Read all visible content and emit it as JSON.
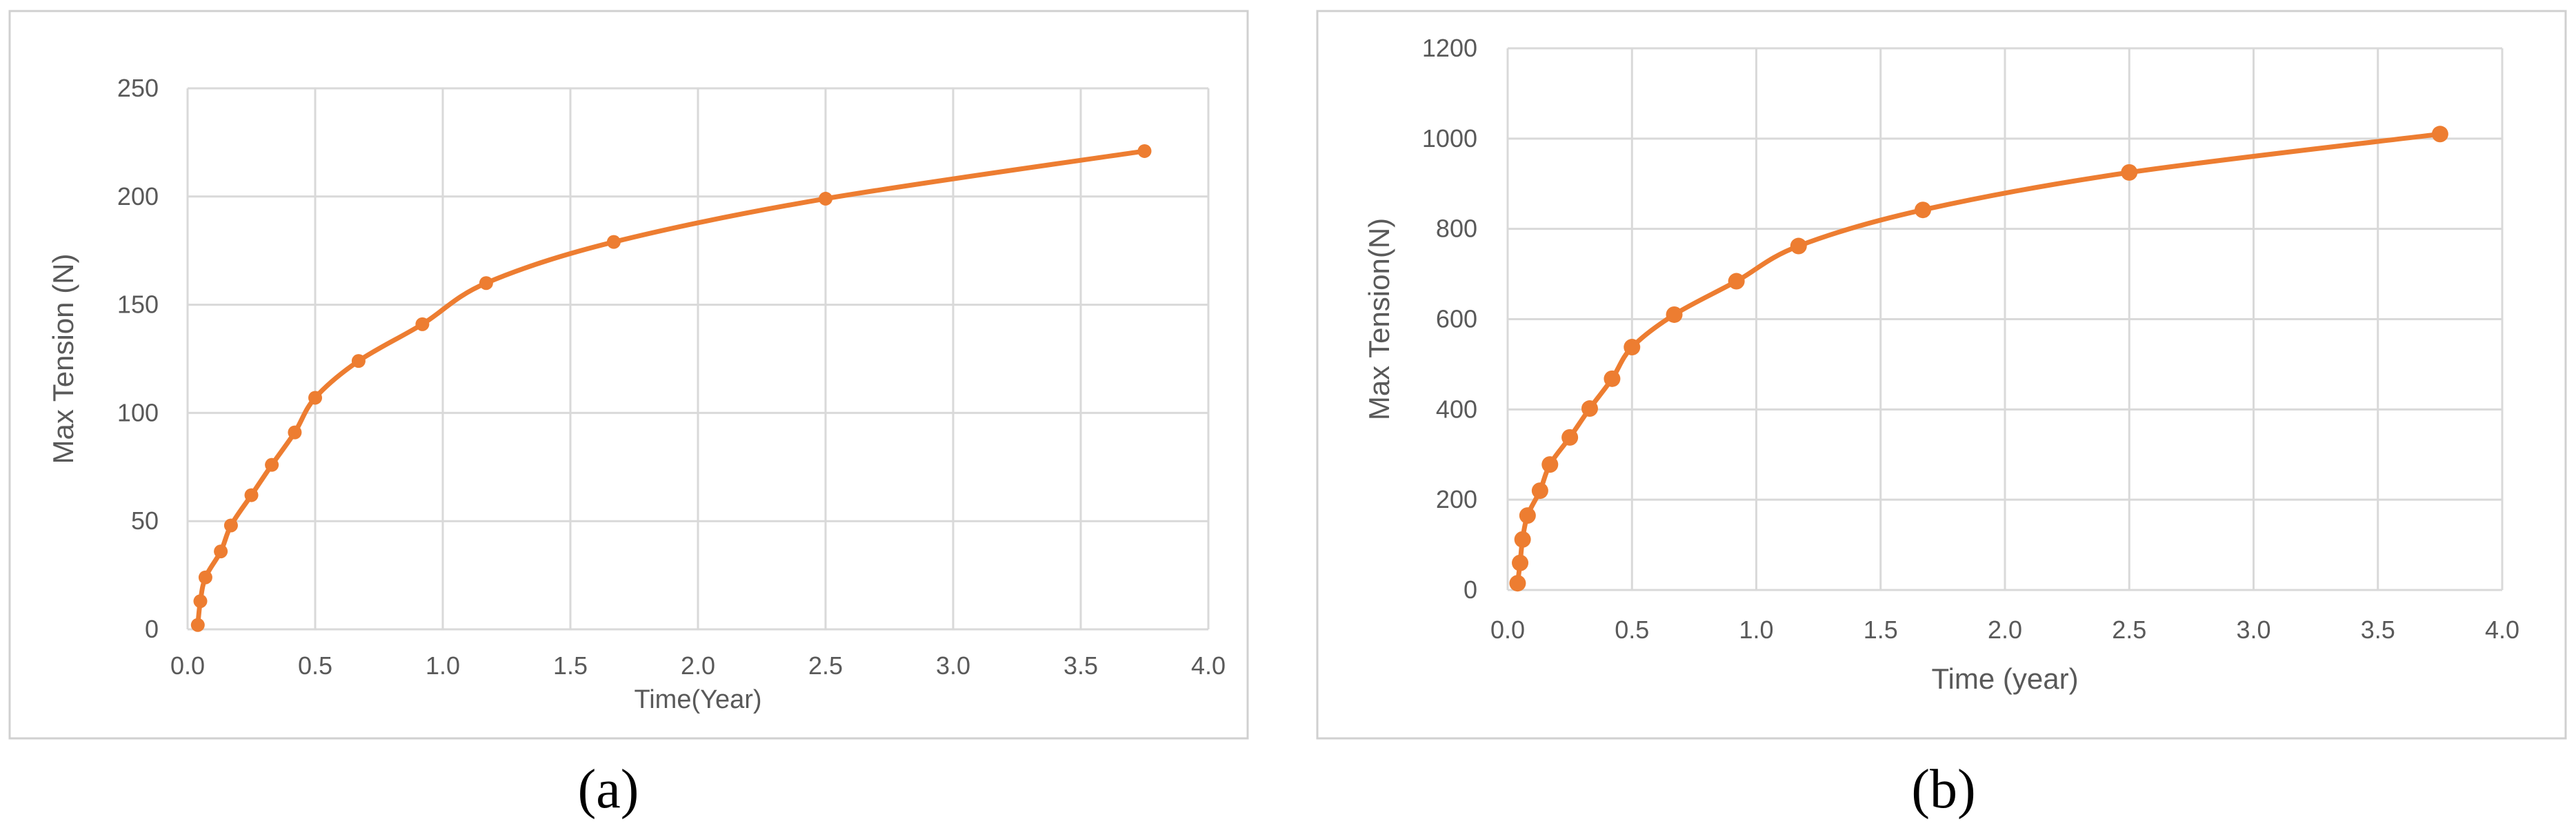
{
  "captions": {
    "a": "(a)",
    "b": "(b)"
  },
  "colors": {
    "series": "#ED7D31",
    "grid": "#d9d9d9",
    "text": "#595959"
  },
  "chart_data": [
    {
      "type": "line",
      "xlabel": "Time(Year)",
      "ylabel": "Max Tension (N)",
      "xlim": [
        0,
        4
      ],
      "ylim": [
        0,
        250
      ],
      "x_ticks": [
        "0.0",
        "0.5",
        "1.0",
        "1.5",
        "2.0",
        "2.5",
        "3.0",
        "3.5",
        "4.0"
      ],
      "y_ticks": [
        "0",
        "50",
        "100",
        "150",
        "200",
        "250"
      ],
      "grid": true,
      "series": [
        {
          "x": [
            0.04,
            0.05,
            0.07,
            0.13,
            0.17,
            0.25,
            0.33,
            0.42,
            0.5,
            0.67,
            0.92,
            1.17,
            1.67,
            2.5,
            3.75
          ],
          "y": [
            2,
            13,
            24,
            36,
            48,
            62,
            76,
            91,
            107,
            124,
            141,
            160,
            179,
            199,
            221
          ]
        }
      ]
    },
    {
      "type": "line",
      "xlabel": "Time (year)",
      "ylabel": "Max Tension(N)",
      "xlim": [
        0,
        4
      ],
      "ylim": [
        0,
        1200
      ],
      "x_ticks": [
        "0.0",
        "0.5",
        "1.0",
        "1.5",
        "2.0",
        "2.5",
        "3.0",
        "3.5",
        "4.0"
      ],
      "y_ticks": [
        "0",
        "200",
        "400",
        "600",
        "800",
        "1000",
        "1200"
      ],
      "grid": true,
      "series": [
        {
          "x": [
            0.04,
            0.05,
            0.06,
            0.08,
            0.13,
            0.17,
            0.25,
            0.33,
            0.42,
            0.5,
            0.67,
            0.92,
            1.17,
            1.67,
            2.5,
            3.75
          ],
          "y": [
            15,
            60,
            112,
            165,
            220,
            278,
            338,
            402,
            468,
            538,
            610,
            684,
            762,
            842,
            925,
            1010
          ]
        }
      ]
    }
  ]
}
